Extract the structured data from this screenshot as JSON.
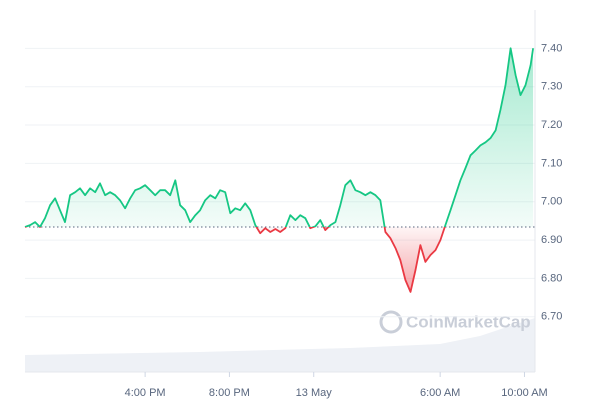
{
  "chart_data": {
    "type": "line",
    "watermark": "CoinMarketCap",
    "baseline": 6.934,
    "up_color": "#16c784",
    "down_color": "#ea3943",
    "xlim": [
      10.3,
      34.5
    ],
    "xticks": [
      {
        "value": 16,
        "label": "4:00 PM"
      },
      {
        "value": 20,
        "label": "8:00 PM"
      },
      {
        "value": 24,
        "label": "13 May"
      },
      {
        "value": 30,
        "label": "6:00 AM"
      },
      {
        "value": 34,
        "label": "10:00 AM"
      }
    ],
    "ylim": [
      6.556,
      7.5
    ],
    "yticks": [
      {
        "value": 6.7,
        "label": "6.70"
      },
      {
        "value": 6.8,
        "label": "6.80"
      },
      {
        "value": 6.9,
        "label": "6.90"
      },
      {
        "value": 7.0,
        "label": "7.00"
      },
      {
        "value": 7.1,
        "label": "7.10"
      },
      {
        "value": 7.2,
        "label": "7.20"
      },
      {
        "value": 7.3,
        "label": "7.30"
      },
      {
        "value": 7.4,
        "label": "7.40"
      }
    ],
    "grid": true,
    "x": [
      10.3,
      10.54,
      10.78,
      11.01,
      11.25,
      11.49,
      11.73,
      11.96,
      12.2,
      12.44,
      12.68,
      12.91,
      13.15,
      13.39,
      13.63,
      13.86,
      14.1,
      14.34,
      14.58,
      14.81,
      15.05,
      15.29,
      15.53,
      15.76,
      16.0,
      16.24,
      16.48,
      16.71,
      16.95,
      17.19,
      17.43,
      17.66,
      17.9,
      18.14,
      18.38,
      18.61,
      18.85,
      19.09,
      19.33,
      19.56,
      19.8,
      20.04,
      20.28,
      20.51,
      20.75,
      20.99,
      21.23,
      21.46,
      21.7,
      21.94,
      22.18,
      22.41,
      22.65,
      22.89,
      23.13,
      23.36,
      23.6,
      23.84,
      24.08,
      24.31,
      24.55,
      24.79,
      25.03,
      25.26,
      25.5,
      25.74,
      25.98,
      26.21,
      26.45,
      26.69,
      26.93,
      27.16,
      27.4,
      27.64,
      27.88,
      28.11,
      28.35,
      28.59,
      28.83,
      29.06,
      29.3,
      29.54,
      29.78,
      30.01,
      30.25,
      30.49,
      30.73,
      30.96,
      31.2,
      31.44,
      31.68,
      31.91,
      32.15,
      32.39,
      32.63,
      32.86,
      33.1,
      33.34,
      33.58,
      33.81,
      34.05,
      34.29,
      34.41
    ],
    "values": [
      6.934,
      6.939,
      6.947,
      6.934,
      6.957,
      6.991,
      7.009,
      6.978,
      6.947,
      7.017,
      7.025,
      7.035,
      7.017,
      7.035,
      7.025,
      7.048,
      7.017,
      7.025,
      7.017,
      7.004,
      6.983,
      7.009,
      7.03,
      7.035,
      7.043,
      7.03,
      7.017,
      7.03,
      7.03,
      7.017,
      7.056,
      6.991,
      6.978,
      6.947,
      6.965,
      6.978,
      7.004,
      7.017,
      7.009,
      7.03,
      7.025,
      6.97,
      6.983,
      6.978,
      6.996,
      6.978,
      6.939,
      6.918,
      6.931,
      6.921,
      6.929,
      6.921,
      6.931,
      6.965,
      6.952,
      6.965,
      6.957,
      6.931,
      6.936,
      6.952,
      6.926,
      6.939,
      6.947,
      6.991,
      7.043,
      7.056,
      7.03,
      7.025,
      7.017,
      7.025,
      7.017,
      7.004,
      6.921,
      6.905,
      6.879,
      6.848,
      6.796,
      6.765,
      6.822,
      6.887,
      6.843,
      6.861,
      6.874,
      6.9,
      6.939,
      6.978,
      7.017,
      7.056,
      7.088,
      7.121,
      7.134,
      7.147,
      7.155,
      7.166,
      7.186,
      7.239,
      7.304,
      7.4,
      7.33,
      7.278,
      7.304,
      7.356,
      7.4
    ]
  }
}
